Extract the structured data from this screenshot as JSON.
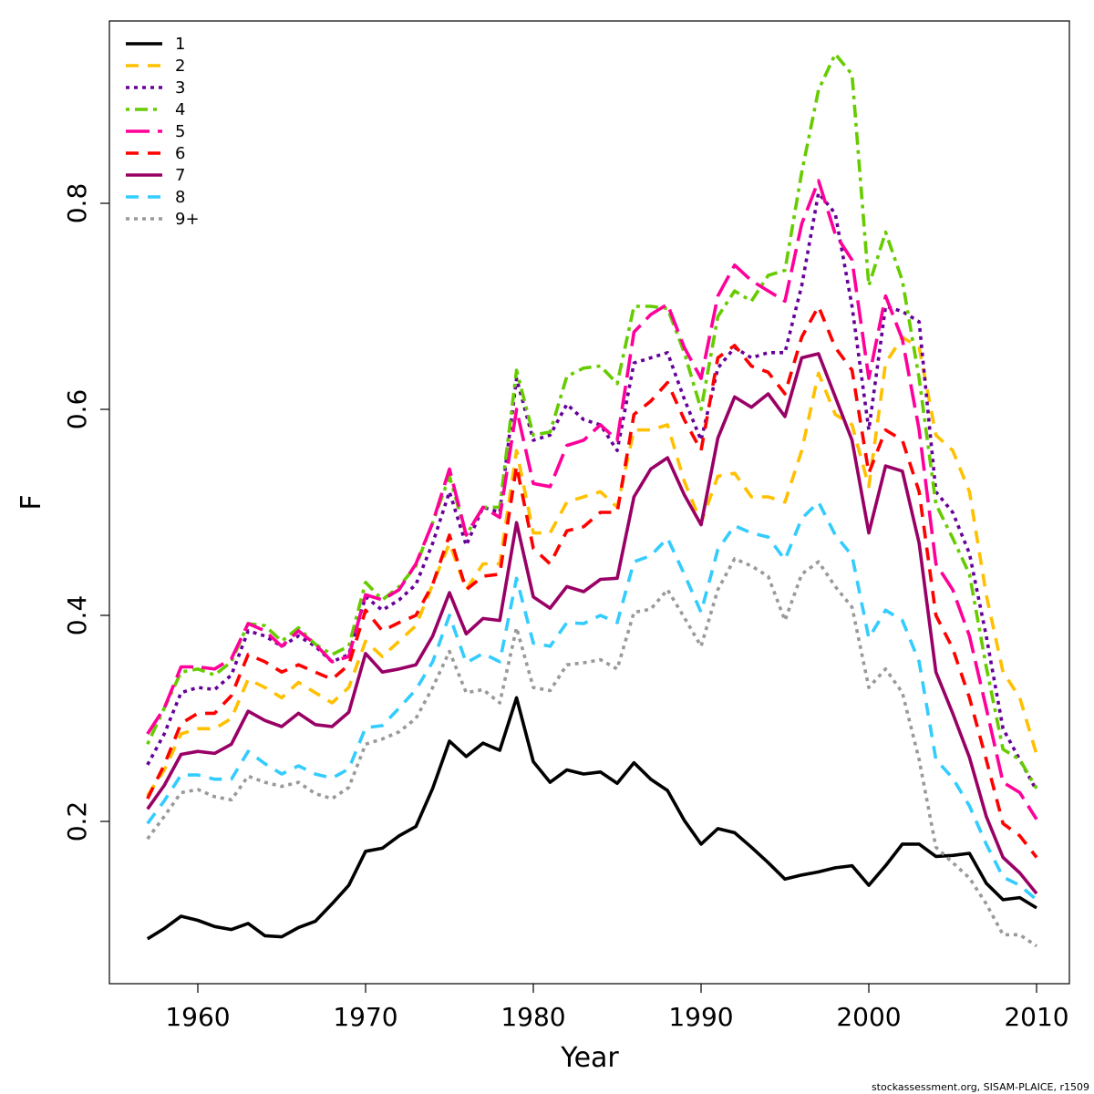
{
  "chart_data": {
    "type": "line",
    "title": "",
    "xlabel": "Year",
    "ylabel": "F",
    "xlim": [
      1955,
      2012
    ],
    "ylim": [
      0.05,
      0.99
    ],
    "xticks": [
      1960,
      1970,
      1980,
      1990,
      2000,
      2010
    ],
    "yticks": [
      0.2,
      0.4,
      0.6,
      0.8
    ],
    "xtick_labels": [
      "1960",
      "1970",
      "1980",
      "1990",
      "2000",
      "2010"
    ],
    "ytick_labels": [
      "0.2",
      "0.4",
      "0.6",
      "0.8"
    ],
    "grid": false,
    "legend_position": "top-left",
    "x": [
      1957,
      1958,
      1959,
      1960,
      1961,
      1962,
      1963,
      1964,
      1965,
      1966,
      1967,
      1968,
      1969,
      1970,
      1971,
      1972,
      1973,
      1974,
      1975,
      1976,
      1977,
      1978,
      1979,
      1980,
      1981,
      1982,
      1983,
      1984,
      1985,
      1986,
      1987,
      1988,
      1989,
      1990,
      1991,
      1992,
      1993,
      1994,
      1995,
      1996,
      1997,
      1998,
      1999,
      2000,
      2001,
      2002,
      2003,
      2004,
      2005,
      2006,
      2007,
      2008,
      2009,
      2010
    ],
    "series": [
      {
        "name": "1",
        "color": "#000000",
        "dash": "solid",
        "values": [
          0.086,
          0.096,
          0.108,
          0.104,
          0.098,
          0.095,
          0.101,
          0.089,
          0.088,
          0.097,
          0.103,
          0.12,
          0.138,
          0.171,
          0.174,
          0.186,
          0.195,
          0.232,
          0.278,
          0.263,
          0.276,
          0.269,
          0.32,
          0.258,
          0.238,
          0.25,
          0.246,
          0.248,
          0.237,
          0.257,
          0.241,
          0.23,
          0.201,
          0.178,
          0.193,
          0.189,
          0.175,
          0.16,
          0.144,
          0.148,
          0.151,
          0.155,
          0.157,
          0.138,
          0.157,
          0.178,
          0.178,
          0.166,
          0.167,
          0.169,
          0.14,
          0.124,
          0.126,
          0.116
        ]
      },
      {
        "name": "2",
        "color": "#FFC000",
        "dash": "dashed",
        "values": [
          0.225,
          0.25,
          0.285,
          0.29,
          0.29,
          0.3,
          0.338,
          0.33,
          0.32,
          0.335,
          0.325,
          0.315,
          0.33,
          0.375,
          0.36,
          0.375,
          0.39,
          0.43,
          0.47,
          0.425,
          0.45,
          0.45,
          0.56,
          0.48,
          0.48,
          0.51,
          0.515,
          0.52,
          0.505,
          0.58,
          0.58,
          0.585,
          0.53,
          0.49,
          0.535,
          0.538,
          0.515,
          0.515,
          0.51,
          0.56,
          0.635,
          0.595,
          0.585,
          0.525,
          0.645,
          0.67,
          0.66,
          0.575,
          0.56,
          0.52,
          0.42,
          0.345,
          0.32,
          0.265
        ]
      },
      {
        "name": "3",
        "color": "#660099",
        "dash": "dotted",
        "values": [
          0.255,
          0.285,
          0.325,
          0.33,
          0.328,
          0.342,
          0.385,
          0.38,
          0.37,
          0.38,
          0.37,
          0.355,
          0.362,
          0.418,
          0.405,
          0.415,
          0.43,
          0.47,
          0.52,
          0.468,
          0.505,
          0.5,
          0.63,
          0.57,
          0.575,
          0.605,
          0.59,
          0.585,
          0.56,
          0.645,
          0.65,
          0.655,
          0.61,
          0.57,
          0.64,
          0.66,
          0.65,
          0.655,
          0.655,
          0.72,
          0.81,
          0.79,
          0.7,
          0.58,
          0.7,
          0.695,
          0.685,
          0.52,
          0.5,
          0.46,
          0.38,
          0.29,
          0.26,
          0.23
        ]
      },
      {
        "name": "4",
        "color": "#66CC00",
        "dash": "dashdot",
        "values": [
          0.275,
          0.31,
          0.345,
          0.348,
          0.342,
          0.355,
          0.392,
          0.39,
          0.375,
          0.388,
          0.372,
          0.362,
          0.37,
          0.432,
          0.415,
          0.428,
          0.448,
          0.49,
          0.535,
          0.478,
          0.505,
          0.505,
          0.638,
          0.575,
          0.578,
          0.632,
          0.64,
          0.642,
          0.625,
          0.7,
          0.7,
          0.698,
          0.655,
          0.6,
          0.69,
          0.715,
          0.705,
          0.73,
          0.735,
          0.83,
          0.91,
          0.945,
          0.925,
          0.72,
          0.772,
          0.725,
          0.63,
          0.508,
          0.475,
          0.44,
          0.35,
          0.27,
          0.26,
          0.232
        ]
      },
      {
        "name": "5",
        "color": "#FF0099",
        "dash": "longdash",
        "values": [
          0.285,
          0.31,
          0.35,
          0.35,
          0.348,
          0.358,
          0.392,
          0.385,
          0.37,
          0.385,
          0.372,
          0.355,
          0.36,
          0.42,
          0.415,
          0.425,
          0.45,
          0.49,
          0.542,
          0.478,
          0.505,
          0.495,
          0.6,
          0.528,
          0.525,
          0.565,
          0.57,
          0.585,
          0.57,
          0.675,
          0.692,
          0.702,
          0.66,
          0.63,
          0.71,
          0.74,
          0.725,
          0.715,
          0.705,
          0.78,
          0.822,
          0.77,
          0.745,
          0.63,
          0.71,
          0.668,
          0.58,
          0.45,
          0.425,
          0.38,
          0.31,
          0.238,
          0.228,
          0.202
        ]
      },
      {
        "name": "6",
        "color": "#FF0000",
        "dash": "dashed",
        "values": [
          0.222,
          0.255,
          0.295,
          0.305,
          0.305,
          0.322,
          0.362,
          0.355,
          0.345,
          0.352,
          0.345,
          0.338,
          0.352,
          0.405,
          0.385,
          0.393,
          0.4,
          0.43,
          0.478,
          0.425,
          0.438,
          0.44,
          0.545,
          0.465,
          0.45,
          0.482,
          0.486,
          0.5,
          0.5,
          0.595,
          0.608,
          0.626,
          0.59,
          0.56,
          0.65,
          0.662,
          0.642,
          0.636,
          0.615,
          0.67,
          0.7,
          0.66,
          0.638,
          0.538,
          0.58,
          0.57,
          0.52,
          0.4,
          0.368,
          0.32,
          0.26,
          0.198,
          0.186,
          0.165
        ]
      },
      {
        "name": "7",
        "color": "#990066",
        "dash": "solid",
        "values": [
          0.212,
          0.235,
          0.265,
          0.268,
          0.266,
          0.275,
          0.307,
          0.298,
          0.292,
          0.305,
          0.294,
          0.292,
          0.306,
          0.363,
          0.345,
          0.348,
          0.352,
          0.38,
          0.422,
          0.382,
          0.397,
          0.395,
          0.49,
          0.418,
          0.407,
          0.428,
          0.423,
          0.435,
          0.436,
          0.515,
          0.542,
          0.553,
          0.517,
          0.488,
          0.572,
          0.612,
          0.602,
          0.615,
          0.593,
          0.65,
          0.654,
          0.612,
          0.57,
          0.48,
          0.545,
          0.54,
          0.47,
          0.345,
          0.305,
          0.262,
          0.205,
          0.165,
          0.15,
          0.13
        ]
      },
      {
        "name": "8",
        "color": "#33CCFF",
        "dash": "dashed",
        "values": [
          0.198,
          0.22,
          0.245,
          0.245,
          0.241,
          0.241,
          0.268,
          0.256,
          0.246,
          0.254,
          0.246,
          0.242,
          0.251,
          0.291,
          0.293,
          0.31,
          0.328,
          0.355,
          0.4,
          0.354,
          0.363,
          0.355,
          0.436,
          0.373,
          0.37,
          0.393,
          0.392,
          0.4,
          0.393,
          0.452,
          0.458,
          0.475,
          0.44,
          0.403,
          0.464,
          0.487,
          0.48,
          0.476,
          0.454,
          0.494,
          0.51,
          0.478,
          0.458,
          0.378,
          0.405,
          0.395,
          0.355,
          0.26,
          0.242,
          0.215,
          0.178,
          0.146,
          0.138,
          0.124
        ]
      },
      {
        "name": "9+",
        "color": "#999999",
        "dash": "dotted",
        "values": [
          0.183,
          0.205,
          0.228,
          0.231,
          0.224,
          0.221,
          0.244,
          0.238,
          0.234,
          0.238,
          0.227,
          0.222,
          0.233,
          0.275,
          0.28,
          0.287,
          0.3,
          0.33,
          0.365,
          0.325,
          0.328,
          0.315,
          0.388,
          0.33,
          0.327,
          0.352,
          0.354,
          0.357,
          0.348,
          0.403,
          0.406,
          0.425,
          0.398,
          0.37,
          0.425,
          0.455,
          0.448,
          0.438,
          0.395,
          0.44,
          0.452,
          0.428,
          0.408,
          0.33,
          0.348,
          0.325,
          0.26,
          0.175,
          0.16,
          0.145,
          0.12,
          0.09,
          0.09,
          0.079
        ]
      }
    ]
  },
  "credit": "stockassessment.org, SISAM-PLAICE, r1509"
}
